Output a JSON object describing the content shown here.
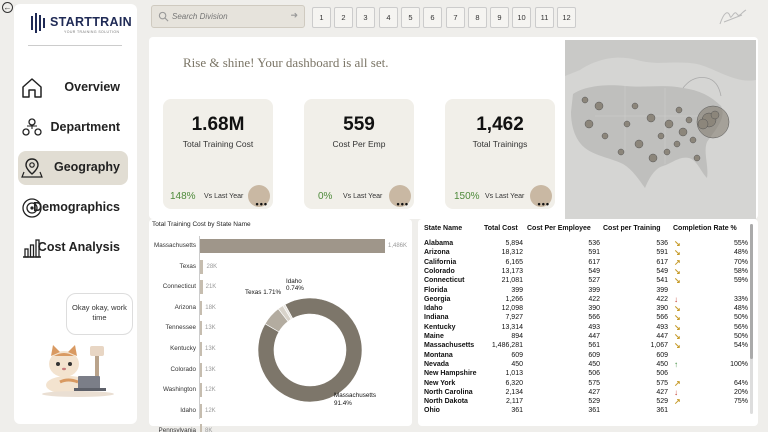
{
  "app": {
    "brand": "STARTTRAIN",
    "tagline": "YOUR TRAINING SOLUTION"
  },
  "nav": {
    "items": [
      {
        "label": "Overview",
        "icon": "home-icon"
      },
      {
        "label": "Department",
        "icon": "people-icon"
      },
      {
        "label": "Geography",
        "icon": "map-pin-icon",
        "active": true
      },
      {
        "label": "Demographics",
        "icon": "target-icon"
      },
      {
        "label": "Cost Analysis",
        "icon": "bar-chart-icon"
      }
    ]
  },
  "mascot": {
    "speech": "Okay okay, work time"
  },
  "search": {
    "placeholder": "Search Division"
  },
  "pages": [
    "1",
    "2",
    "3",
    "4",
    "5",
    "6",
    "7",
    "8",
    "9",
    "10",
    "11",
    "12"
  ],
  "header": {
    "greeting": "Rise & shine! Your dashboard is all set."
  },
  "kpis": [
    {
      "value": "1.68M",
      "label": "Total Training Cost",
      "change": "148%",
      "vs": "Vs Last Year"
    },
    {
      "value": "559",
      "label": "Cost Per Emp",
      "change": "0%",
      "vs": "Vs Last Year"
    },
    {
      "value": "1,462",
      "label": "Total Trainings",
      "change": "150%",
      "vs": "Vs Last Year"
    }
  ],
  "chart_data": [
    {
      "type": "bar",
      "title": "Total Training Cost by State Name",
      "categories": [
        "Massachusetts",
        "Texas",
        "Connecticut",
        "Arizona",
        "Tennessee",
        "Kentucky",
        "Colorado",
        "Washington",
        "Idaho",
        "Pennsylvania"
      ],
      "values": [
        1486,
        28,
        21,
        18,
        13,
        13,
        13,
        12,
        12,
        8
      ],
      "value_labels": [
        "1,486K",
        "28K",
        "21K",
        "18K",
        "13K",
        "13K",
        "13K",
        "12K",
        "12K",
        "8K"
      ],
      "unit": "K"
    },
    {
      "type": "pie",
      "slices": [
        {
          "name": "Massachusetts",
          "value": 91.4,
          "label": "Massachusetts\n91.4%"
        },
        {
          "name": "Texas",
          "value": 1.71,
          "label": "Texas 1.71%"
        },
        {
          "name": "Idaho",
          "value": 0.74,
          "label": "Idaho\n0.74%"
        },
        {
          "name": "Other",
          "value": 6.15,
          "label": ""
        }
      ]
    }
  ],
  "table": {
    "headers": [
      "State Name",
      "Total Cost",
      "Cost Per Employee",
      "Cost per Training",
      "Completion Rate %"
    ],
    "rows": [
      {
        "state": "Alabama",
        "total": "5,894",
        "per_emp": "536",
        "per_train": "536",
        "trend": "down-right",
        "rate": "55%"
      },
      {
        "state": "Arizona",
        "total": "18,312",
        "per_emp": "591",
        "per_train": "591",
        "trend": "down-right",
        "rate": "48%"
      },
      {
        "state": "California",
        "total": "6,165",
        "per_emp": "617",
        "per_train": "617",
        "trend": "up-right",
        "rate": "70%"
      },
      {
        "state": "Colorado",
        "total": "13,173",
        "per_emp": "549",
        "per_train": "549",
        "trend": "down-right",
        "rate": "58%"
      },
      {
        "state": "Connecticut",
        "total": "21,081",
        "per_emp": "527",
        "per_train": "541",
        "trend": "down-right",
        "rate": "59%"
      },
      {
        "state": "Florida",
        "total": "399",
        "per_emp": "399",
        "per_train": "399",
        "trend": "",
        "rate": ""
      },
      {
        "state": "Georgia",
        "total": "1,266",
        "per_emp": "422",
        "per_train": "422",
        "trend": "down",
        "rate": "33%"
      },
      {
        "state": "Idaho",
        "total": "12,098",
        "per_emp": "390",
        "per_train": "390",
        "trend": "down-right",
        "rate": "48%"
      },
      {
        "state": "Indiana",
        "total": "7,927",
        "per_emp": "566",
        "per_train": "566",
        "trend": "down-right",
        "rate": "50%"
      },
      {
        "state": "Kentucky",
        "total": "13,314",
        "per_emp": "493",
        "per_train": "493",
        "trend": "down-right",
        "rate": "56%"
      },
      {
        "state": "Maine",
        "total": "894",
        "per_emp": "447",
        "per_train": "447",
        "trend": "down-right",
        "rate": "50%"
      },
      {
        "state": "Massachusetts",
        "total": "1,486,281",
        "per_emp": "561",
        "per_train": "1,067",
        "trend": "down-right",
        "rate": "54%"
      },
      {
        "state": "Montana",
        "total": "609",
        "per_emp": "609",
        "per_train": "609",
        "trend": "",
        "rate": ""
      },
      {
        "state": "Nevada",
        "total": "450",
        "per_emp": "450",
        "per_train": "450",
        "trend": "up",
        "rate": "100%"
      },
      {
        "state": "New Hampshire",
        "total": "1,013",
        "per_emp": "506",
        "per_train": "506",
        "trend": "",
        "rate": ""
      },
      {
        "state": "New York",
        "total": "6,320",
        "per_emp": "575",
        "per_train": "575",
        "trend": "up-right",
        "rate": "64%"
      },
      {
        "state": "North Carolina",
        "total": "2,134",
        "per_emp": "427",
        "per_train": "427",
        "trend": "down",
        "rate": "20%"
      },
      {
        "state": "North Dakota",
        "total": "2,117",
        "per_emp": "529",
        "per_train": "529",
        "trend": "up-right",
        "rate": "75%"
      },
      {
        "state": "Ohio",
        "total": "361",
        "per_emp": "361",
        "per_train": "361",
        "trend": "",
        "rate": ""
      }
    ]
  },
  "colors": {
    "accent": "#9f968a",
    "bar": "#c6bdaf",
    "donut": "#7d766a",
    "positive": "#4d8a3a",
    "arrow_warn": "#c79c2c",
    "arrow_down": "#c0392b",
    "arrow_up": "#3c8a3c"
  }
}
